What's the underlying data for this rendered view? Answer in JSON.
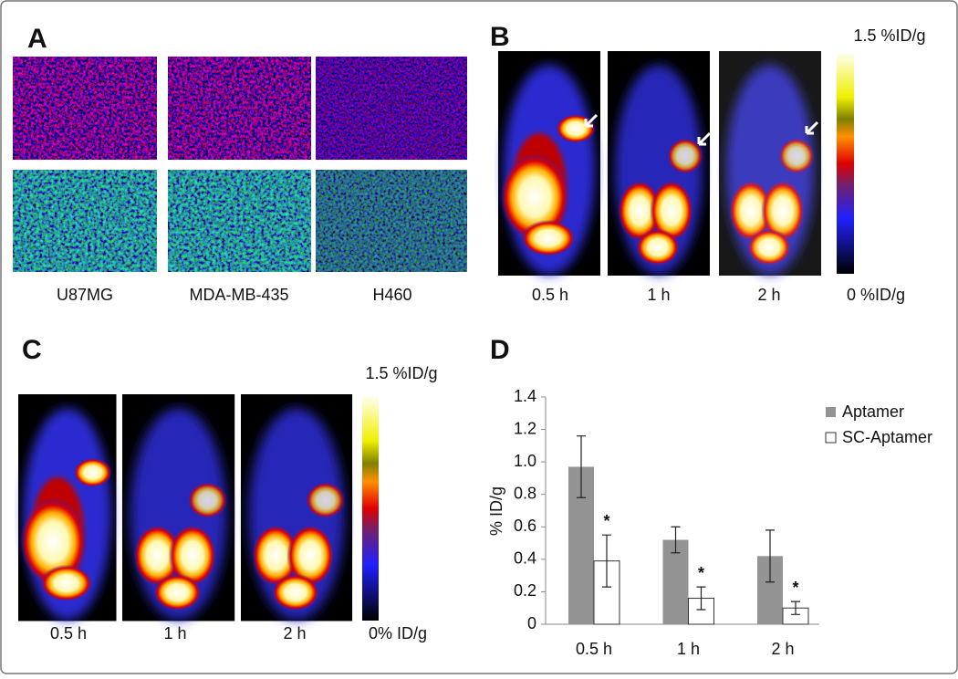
{
  "panels": {
    "a": {
      "label": "A",
      "samples": [
        "U87MG",
        "MDA-MB-435",
        "H460"
      ]
    },
    "b": {
      "label": "B",
      "scale_max": "1.5 %ID/g",
      "scale_min": "0 %ID/g",
      "times": [
        "0.5 h",
        "1 h",
        "2 h"
      ]
    },
    "c": {
      "label": "C",
      "scale_max": "1.5 %ID/g",
      "scale_min": "0% ID/g",
      "times": [
        "0.5 h",
        "1 h",
        "2 h"
      ]
    }
  },
  "chart_data": {
    "type": "bar",
    "label": "D",
    "ylabel": "% ID/g",
    "categories": [
      "0.5 h",
      "1 h",
      "2 h"
    ],
    "series": [
      {
        "name": "Aptamer",
        "color": "#939393",
        "values": [
          0.97,
          0.52,
          0.42
        ],
        "errors": [
          0.19,
          0.08,
          0.16
        ]
      },
      {
        "name": "SC-Aptamer",
        "color": "#ffffff",
        "values": [
          0.39,
          0.16,
          0.1
        ],
        "errors": [
          0.16,
          0.07,
          0.04
        ]
      }
    ],
    "annotations": [
      "*",
      "*",
      "*"
    ],
    "ylim": [
      0,
      1.4
    ],
    "yticks": [
      0,
      0.2,
      0.4,
      0.6,
      0.8,
      {
        "value": 1,
        "label": "1.0"
      },
      1.2,
      1.4
    ],
    "legend": "upper right"
  }
}
